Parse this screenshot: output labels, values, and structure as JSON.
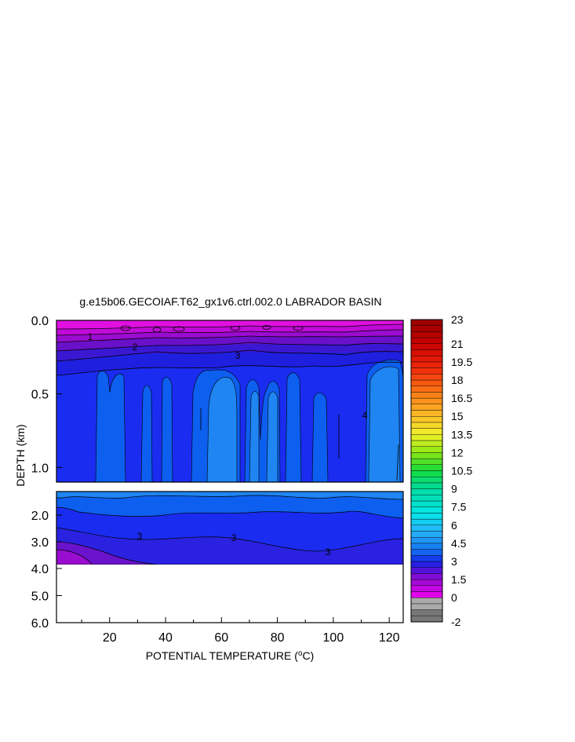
{
  "chart_data": {
    "type": "heatmap",
    "title": "g.e15b06.GECOIAF.T62_gx1v6.ctrl.002.0 LABRADOR BASIN",
    "xlabel": "POTENTIAL TEMPERATURE (",
    "xlabel_sup": "o",
    "xlabel_tail": "C)",
    "ylabel": "DEPTH (km)",
    "xlim": [
      1,
      125
    ],
    "x_ticks": [
      "20",
      "40",
      "60",
      "80",
      "100",
      "120"
    ],
    "y_ticks_upper": [
      "0.0",
      "0.5",
      "1.0"
    ],
    "y_ticks_lower": [
      "2.0",
      "3.0",
      "4.0",
      "5.0",
      "6.0"
    ],
    "colorbar": {
      "min": -2,
      "max": 23,
      "step": 0.5,
      "labels": [
        "23",
        "21",
        "19.5",
        "18",
        "16.5",
        "15",
        "13.5",
        "12",
        "10.5",
        "9",
        "7.5",
        "6",
        "4.5",
        "3",
        "1.5",
        "0",
        "-2"
      ]
    },
    "contour_labels": [
      "1",
      "2",
      "3",
      "4",
      "3",
      "3",
      "3"
    ]
  }
}
